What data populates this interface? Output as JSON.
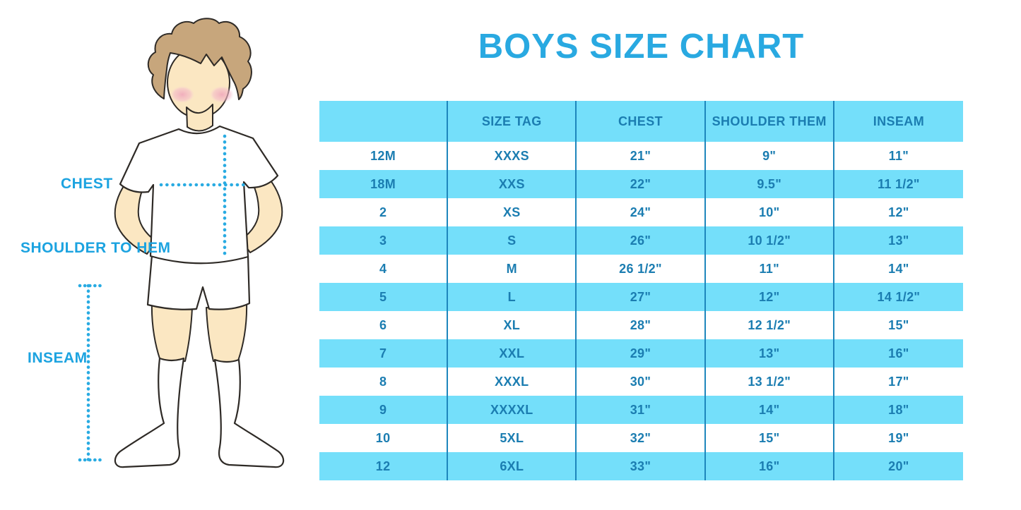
{
  "title": "BOYS SIZE CHART",
  "figure": {
    "labels": {
      "chest": "CHEST",
      "shoulder_to_hem": "SHOULDER TO HEM",
      "inseam": "INSEAM"
    }
  },
  "chart_data": {
    "type": "table",
    "title": "BOYS SIZE CHART",
    "columns": [
      "",
      "SIZE TAG",
      "CHEST",
      "SHOULDER THEM",
      "INSEAM"
    ],
    "rows": [
      [
        "12M",
        "XXXS",
        "21\"",
        "9\"",
        "11\""
      ],
      [
        "18M",
        "XXS",
        "22\"",
        "9.5\"",
        "11 1/2\""
      ],
      [
        "2",
        "XS",
        "24\"",
        "10\"",
        "12\""
      ],
      [
        "3",
        "S",
        "26\"",
        "10 1/2\"",
        "13\""
      ],
      [
        "4",
        "M",
        "26 1/2\"",
        "11\"",
        "14\""
      ],
      [
        "5",
        "L",
        "27\"",
        "12\"",
        "14 1/2\""
      ],
      [
        "6",
        "XL",
        "28\"",
        "12 1/2\"",
        "15\""
      ],
      [
        "7",
        "XXL",
        "29\"",
        "13\"",
        "16\""
      ],
      [
        "8",
        "XXXL",
        "30\"",
        "13 1/2\"",
        "17\""
      ],
      [
        "9",
        "XXXXL",
        "31\"",
        "14\"",
        "18\""
      ],
      [
        "10",
        "5XL",
        "32\"",
        "15\"",
        "19\""
      ],
      [
        "12",
        "6XL",
        "33\"",
        "16\"",
        "20\""
      ]
    ],
    "layout": {
      "header_background": "banded",
      "alternating_rows": "white / light-blue starting white",
      "columns_equal_width": true
    }
  },
  "colors": {
    "band_blue": "#74dffa",
    "table_text": "#1b7db1",
    "divider": "#1e86bc",
    "title_blue": "#29a9e1",
    "label_blue": "#1ca3e0",
    "dotted_line": "#29abe2",
    "skin": "#fbe7c2",
    "hair": "#c7a67c",
    "outline": "#2e2a26",
    "blush": "#f1afc2"
  }
}
